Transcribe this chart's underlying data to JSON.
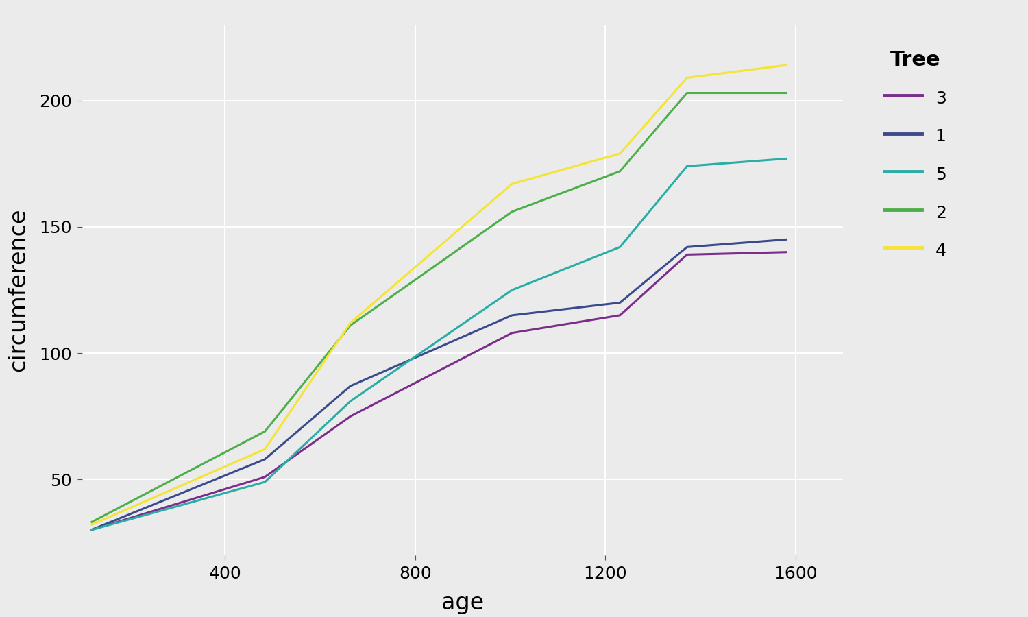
{
  "title": "",
  "xlabel": "age",
  "ylabel": "circumference",
  "plot_background_color": "#EBEBEB",
  "outer_background_color": "#EBEBEB",
  "grid_color": "#FFFFFF",
  "trees": {
    "1": {
      "age": [
        118,
        484,
        664,
        1004,
        1231,
        1372,
        1582
      ],
      "circumference": [
        30,
        58,
        87,
        115,
        120,
        142,
        145
      ],
      "color": "#3B4A8C",
      "label": "1"
    },
    "2": {
      "age": [
        118,
        484,
        664,
        1004,
        1231,
        1372,
        1582
      ],
      "circumference": [
        33,
        69,
        111,
        156,
        172,
        203,
        203
      ],
      "color": "#4DAF4A",
      "label": "2"
    },
    "3": {
      "age": [
        118,
        484,
        664,
        1004,
        1231,
        1372,
        1582
      ],
      "circumference": [
        30,
        51,
        75,
        108,
        115,
        139,
        140
      ],
      "color": "#7B2D8B",
      "label": "3"
    },
    "4": {
      "age": [
        118,
        484,
        664,
        1004,
        1231,
        1372,
        1582
      ],
      "circumference": [
        32,
        62,
        112,
        167,
        179,
        209,
        214
      ],
      "color": "#F5E435",
      "label": "4"
    },
    "5": {
      "age": [
        118,
        484,
        664,
        1004,
        1231,
        1372,
        1582
      ],
      "circumference": [
        30,
        49,
        81,
        125,
        142,
        174,
        177
      ],
      "color": "#2AADA4",
      "label": "5"
    }
  },
  "legend_order": [
    "3",
    "1",
    "5",
    "2",
    "4"
  ],
  "xlim": [
    100,
    1700
  ],
  "ylim": [
    20,
    230
  ],
  "xticks": [
    400,
    800,
    1200,
    1600
  ],
  "yticks": [
    50,
    100,
    150,
    200
  ],
  "legend_title": "Tree",
  "legend_title_fontsize": 22,
  "legend_fontsize": 18,
  "axis_label_fontsize": 24,
  "tick_fontsize": 18,
  "line_width": 2.2
}
